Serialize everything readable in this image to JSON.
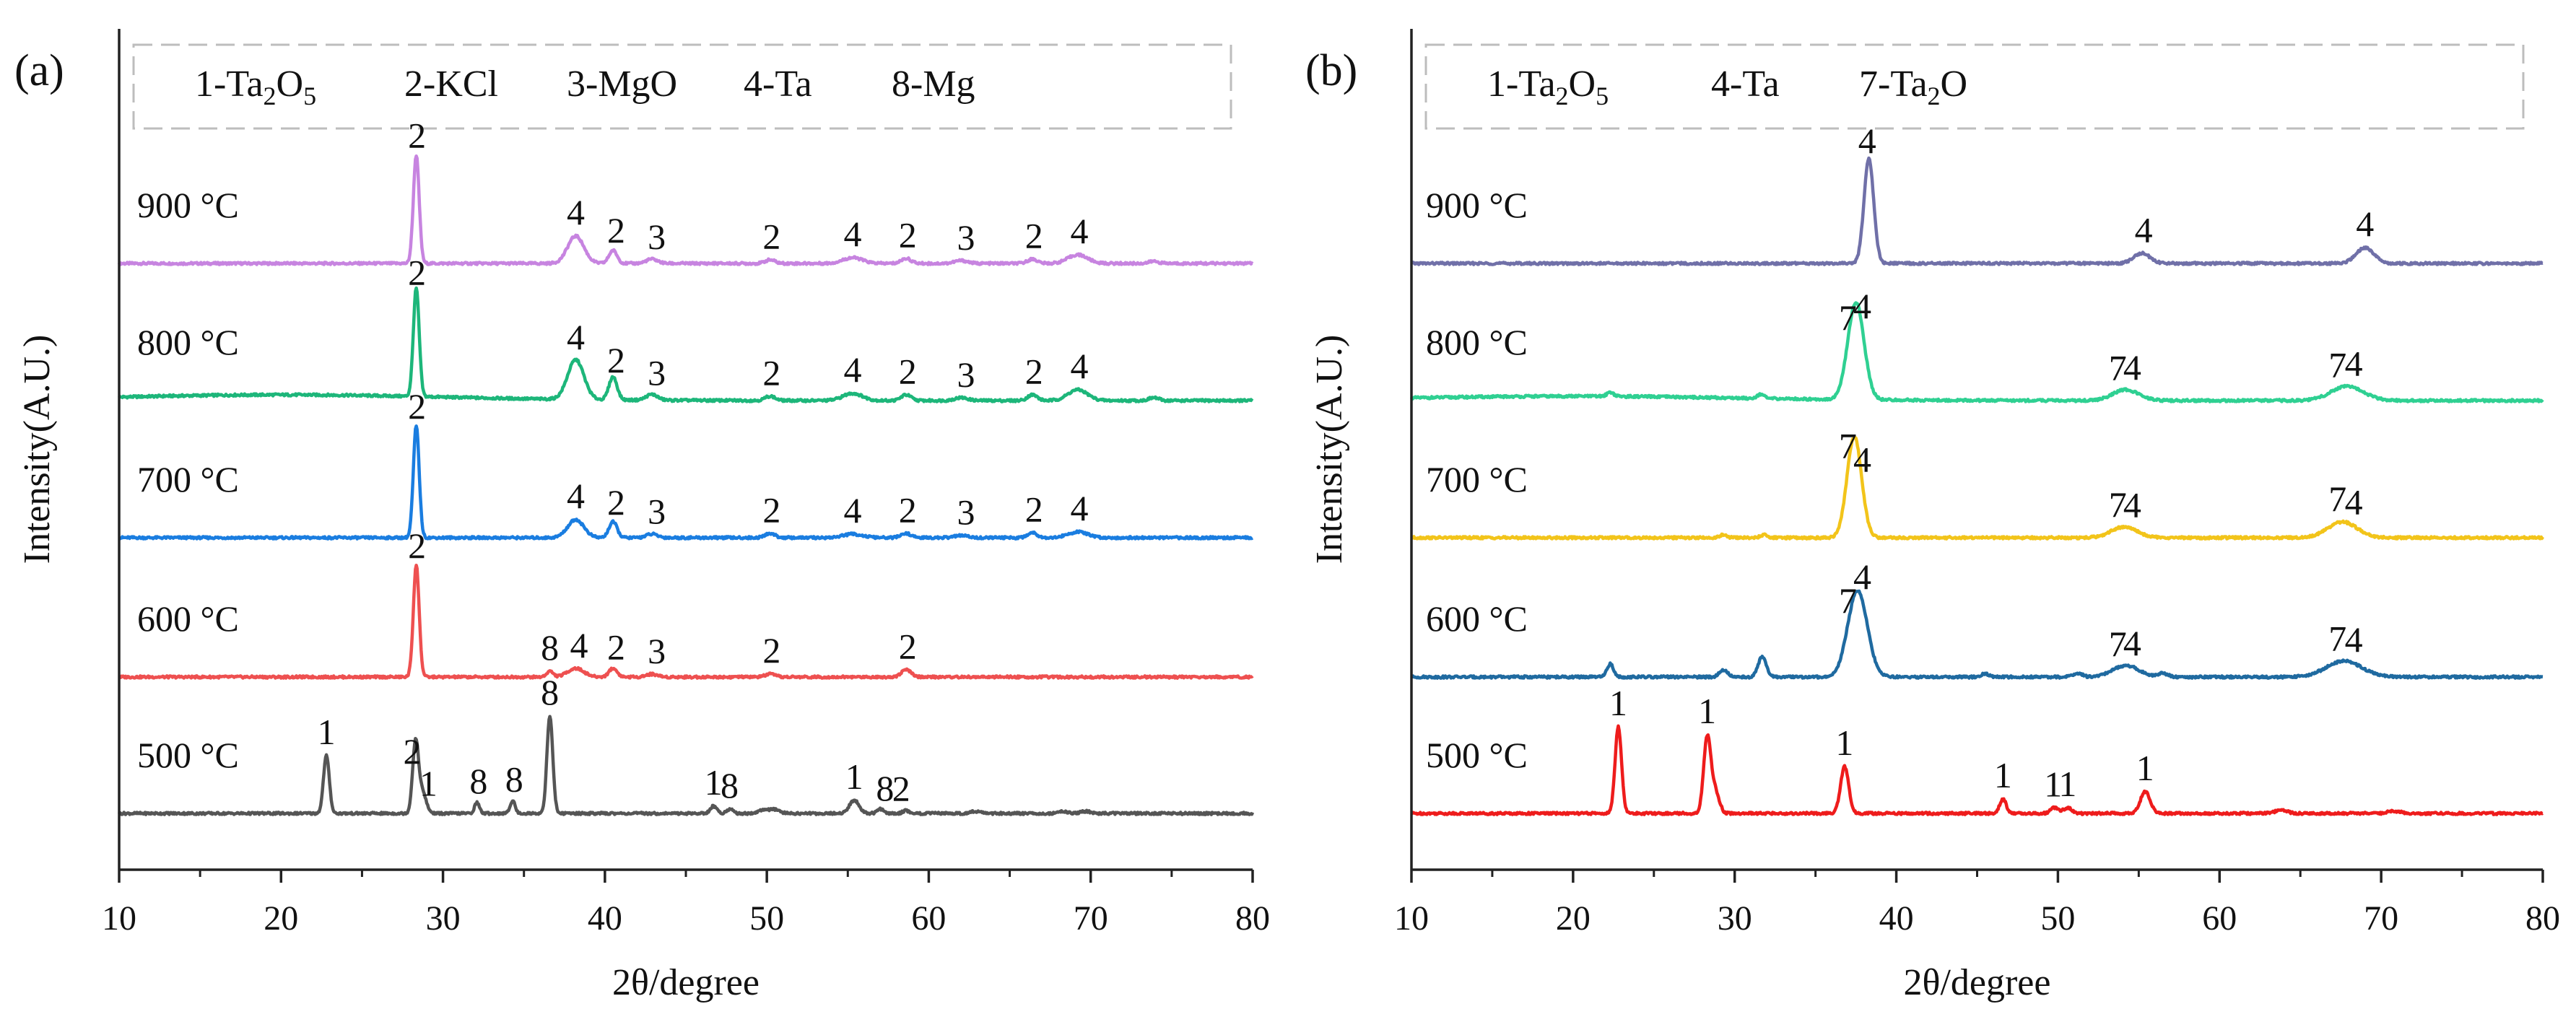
{
  "chart_data": [
    {
      "panel_label": "(a)",
      "type": "line",
      "xlabel": "2θ/degree",
      "ylabel": "Intensity(A.U.)",
      "xlim": [
        10,
        80
      ],
      "xticks": [
        10,
        20,
        30,
        40,
        50,
        60,
        70,
        80
      ],
      "legend": [
        {
          "num": "1",
          "base": "Ta",
          "sub1": "2",
          "mid": "O",
          "sub2": "5"
        },
        {
          "num": "2",
          "base": "KCl",
          "sub1": "",
          "mid": "",
          "sub2": ""
        },
        {
          "num": "3",
          "base": "MgO",
          "sub1": "",
          "mid": "",
          "sub2": ""
        },
        {
          "num": "4",
          "base": "Ta",
          "sub1": "",
          "mid": "",
          "sub2": ""
        },
        {
          "num": "8",
          "base": "Mg",
          "sub1": "",
          "mid": "",
          "sub2": ""
        }
      ],
      "series": [
        {
          "name": "900 °C",
          "color": "#c784e0",
          "peaks": [
            [
              28.35,
              150,
              0.18
            ],
            [
              38.2,
              38,
              0.5
            ],
            [
              40.5,
              18,
              0.25
            ],
            [
              42.9,
              6,
              0.35
            ],
            [
              50.2,
              5,
              0.3
            ],
            [
              55.3,
              8,
              0.6
            ],
            [
              58.6,
              7,
              0.3
            ],
            [
              62.0,
              4,
              0.4
            ],
            [
              66.4,
              6,
              0.3
            ],
            [
              69.2,
              12,
              0.6
            ],
            [
              73.9,
              3,
              0.3
            ]
          ],
          "annotations": [
            {
              "x": 28.4,
              "label": "2"
            },
            {
              "x": 38.2,
              "label": "4"
            },
            {
              "x": 40.7,
              "label": "2"
            },
            {
              "x": 43.2,
              "label": "3"
            },
            {
              "x": 50.3,
              "label": "2"
            },
            {
              "x": 55.3,
              "label": "4"
            },
            {
              "x": 58.7,
              "label": "2"
            },
            {
              "x": 62.3,
              "label": "3"
            },
            {
              "x": 66.5,
              "label": "2"
            },
            {
              "x": 69.3,
              "label": "4"
            }
          ]
        },
        {
          "name": "800 °C",
          "color": "#1db67a",
          "hump": [
            20,
            8,
            10
          ],
          "peaks": [
            [
              28.35,
              150,
              0.18
            ],
            [
              38.2,
              55,
              0.5
            ],
            [
              40.5,
              32,
              0.25
            ],
            [
              42.9,
              8,
              0.35
            ],
            [
              50.2,
              6,
              0.3
            ],
            [
              55.3,
              10,
              0.6
            ],
            [
              58.6,
              8,
              0.3
            ],
            [
              62.0,
              4,
              0.4
            ],
            [
              66.4,
              8,
              0.3
            ],
            [
              69.2,
              15,
              0.6
            ],
            [
              73.9,
              4,
              0.3
            ]
          ],
          "annotations": [
            {
              "x": 28.4,
              "label": "2"
            },
            {
              "x": 38.2,
              "label": "4"
            },
            {
              "x": 40.7,
              "label": "2"
            },
            {
              "x": 43.2,
              "label": "3"
            },
            {
              "x": 50.3,
              "label": "2"
            },
            {
              "x": 55.3,
              "label": "4"
            },
            {
              "x": 58.7,
              "label": "2"
            },
            {
              "x": 62.3,
              "label": "3"
            },
            {
              "x": 66.5,
              "label": "2"
            },
            {
              "x": 69.3,
              "label": "4"
            }
          ]
        },
        {
          "name": "700 °C",
          "color": "#1a7de0",
          "peaks": [
            [
              28.35,
              155,
              0.18
            ],
            [
              38.2,
              25,
              0.5
            ],
            [
              40.5,
              22,
              0.25
            ],
            [
              42.9,
              5,
              0.35
            ],
            [
              50.2,
              6,
              0.3
            ],
            [
              55.3,
              5,
              0.6
            ],
            [
              58.6,
              6,
              0.3
            ],
            [
              62.0,
              3,
              0.4
            ],
            [
              66.4,
              7,
              0.3
            ],
            [
              69.2,
              8,
              0.6
            ]
          ],
          "annotations": [
            {
              "x": 28.4,
              "label": "2"
            },
            {
              "x": 38.2,
              "label": "4"
            },
            {
              "x": 40.7,
              "label": "2"
            },
            {
              "x": 43.2,
              "label": "3"
            },
            {
              "x": 50.3,
              "label": "2"
            },
            {
              "x": 55.3,
              "label": "4"
            },
            {
              "x": 58.7,
              "label": "2"
            },
            {
              "x": 62.3,
              "label": "3"
            },
            {
              "x": 66.5,
              "label": "2"
            },
            {
              "x": 69.3,
              "label": "4"
            }
          ]
        },
        {
          "name": "600 °C",
          "color": "#ee5050",
          "peaks": [
            [
              28.35,
              155,
              0.18
            ],
            [
              36.6,
              8,
              0.2
            ],
            [
              38.2,
              12,
              0.5
            ],
            [
              40.5,
              12,
              0.25
            ],
            [
              42.9,
              4,
              0.35
            ],
            [
              50.2,
              4,
              0.3
            ],
            [
              58.6,
              10,
              0.3
            ]
          ],
          "annotations": [
            {
              "x": 28.4,
              "label": "2"
            },
            {
              "x": 36.6,
              "label": "8"
            },
            {
              "x": 38.4,
              "label": "4"
            },
            {
              "x": 40.7,
              "label": "2"
            },
            {
              "x": 43.2,
              "label": "3"
            },
            {
              "x": 50.3,
              "label": "2"
            },
            {
              "x": 58.7,
              "label": "2"
            }
          ]
        },
        {
          "name": "500 °C",
          "color": "#555555",
          "peaks": [
            [
              22.8,
              80,
              0.18
            ],
            [
              28.3,
              95,
              0.18
            ],
            [
              28.7,
              30,
              0.25
            ],
            [
              32.1,
              15,
              0.15
            ],
            [
              34.3,
              18,
              0.15
            ],
            [
              36.6,
              135,
              0.18
            ],
            [
              46.7,
              10,
              0.2
            ],
            [
              47.7,
              6,
              0.2
            ],
            [
              49.8,
              5,
              0.3
            ],
            [
              50.5,
              5,
              0.3
            ],
            [
              55.4,
              18,
              0.3
            ],
            [
              57.0,
              6,
              0.2
            ],
            [
              58.6,
              4,
              0.2
            ],
            [
              62.9,
              3,
              0.3
            ],
            [
              68.3,
              3,
              0.3
            ],
            [
              69.7,
              3,
              0.3
            ]
          ],
          "annotations": [
            {
              "x": 22.8,
              "label": "1"
            },
            {
              "x": 28.1,
              "label": "2"
            },
            {
              "x": 29.1,
              "label": "1"
            },
            {
              "x": 32.2,
              "label": "8"
            },
            {
              "x": 34.4,
              "label": "8"
            },
            {
              "x": 36.6,
              "label": "8"
            },
            {
              "x": 46.7,
              "label": "1"
            },
            {
              "x": 47.7,
              "label": "8"
            },
            {
              "x": 55.4,
              "label": "1"
            },
            {
              "x": 57.3,
              "label": "8"
            },
            {
              "x": 58.3,
              "label": "2"
            }
          ]
        }
      ]
    },
    {
      "panel_label": "(b)",
      "type": "line",
      "xlabel": "2θ/degree",
      "ylabel": "Intensity(A.U.)",
      "xlim": [
        10,
        80
      ],
      "xticks": [
        10,
        20,
        30,
        40,
        50,
        60,
        70,
        80
      ],
      "legend": [
        {
          "num": "1",
          "base": "Ta",
          "sub1": "2",
          "mid": "O",
          "sub2": "5"
        },
        {
          "num": "4",
          "base": "Ta",
          "sub1": "",
          "mid": "",
          "sub2": ""
        },
        {
          "num": "7",
          "base": "Ta",
          "sub1": "2",
          "mid": "O",
          "sub2": ""
        }
      ],
      "series": [
        {
          "name": "900 °C",
          "color": "#7070a8",
          "peaks": [
            [
              38.3,
              145,
              0.3
            ],
            [
              55.2,
              14,
              0.5
            ],
            [
              69.0,
              22,
              0.55
            ]
          ],
          "annotations": [
            {
              "x": 38.2,
              "label": "4"
            },
            {
              "x": 55.3,
              "label": "4"
            },
            {
              "x": 69.0,
              "label": "4"
            }
          ]
        },
        {
          "name": "800 °C",
          "color": "#2fd092",
          "hump": [
            20,
            6,
            10
          ],
          "peaks": [
            [
              37.5,
              135,
              0.5
            ],
            [
              54.2,
              15,
              0.8
            ],
            [
              67.9,
              20,
              1.0
            ],
            [
              22.3,
              6,
              0.2
            ],
            [
              31.6,
              6,
              0.2
            ]
          ],
          "annotations": [
            {
              "x": 37.0,
              "label": "7"
            },
            {
              "x": 37.9,
              "label": "4"
            },
            {
              "x": 53.7,
              "label": "7"
            },
            {
              "x": 54.6,
              "label": "4"
            },
            {
              "x": 67.3,
              "label": "7"
            },
            {
              "x": 68.3,
              "label": "4"
            }
          ]
        },
        {
          "name": "700 °C",
          "color": "#f2c41a",
          "peaks": [
            [
              37.4,
              140,
              0.45
            ],
            [
              54.1,
              15,
              0.8
            ],
            [
              67.6,
              22,
              0.9
            ],
            [
              29.3,
              4,
              0.2
            ],
            [
              31.8,
              4,
              0.2
            ]
          ],
          "annotations": [
            {
              "x": 37.0,
              "label": "7"
            },
            {
              "x": 37.9,
              "label": "4"
            },
            {
              "x": 53.7,
              "label": "7"
            },
            {
              "x": 54.6,
              "label": "4"
            },
            {
              "x": 67.3,
              "label": "7"
            },
            {
              "x": 68.3,
              "label": "4"
            }
          ]
        },
        {
          "name": "600 °C",
          "color": "#1f6aa0",
          "peaks": [
            [
              37.6,
              120,
              0.6
            ],
            [
              22.3,
              18,
              0.2
            ],
            [
              29.3,
              10,
              0.25
            ],
            [
              31.7,
              28,
              0.25
            ],
            [
              45.5,
              5,
              0.2
            ],
            [
              51.2,
              5,
              0.3
            ],
            [
              54.2,
              16,
              0.8
            ],
            [
              56.5,
              5,
              0.3
            ],
            [
              67.7,
              22,
              1.1
            ]
          ],
          "annotations": [
            {
              "x": 37.0,
              "label": "7"
            },
            {
              "x": 37.9,
              "label": "4"
            },
            {
              "x": 53.7,
              "label": "7"
            },
            {
              "x": 54.6,
              "label": "4"
            },
            {
              "x": 67.3,
              "label": "7"
            },
            {
              "x": 68.3,
              "label": "4"
            }
          ]
        },
        {
          "name": "500 °C",
          "color": "#ee1c1c",
          "peaks": [
            [
              22.8,
              120,
              0.2
            ],
            [
              28.3,
              105,
              0.22
            ],
            [
              28.8,
              30,
              0.25
            ],
            [
              36.8,
              65,
              0.25
            ],
            [
              46.6,
              20,
              0.2
            ],
            [
              49.8,
              8,
              0.25
            ],
            [
              50.6,
              8,
              0.25
            ],
            [
              55.4,
              30,
              0.3
            ],
            [
              63.8,
              4,
              0.4
            ],
            [
              70.8,
              3,
              0.4
            ]
          ],
          "annotations": [
            {
              "x": 22.8,
              "label": "1"
            },
            {
              "x": 28.3,
              "label": "1"
            },
            {
              "x": 36.8,
              "label": "1"
            },
            {
              "x": 46.6,
              "label": "1"
            },
            {
              "x": 49.7,
              "label": "1"
            },
            {
              "x": 50.6,
              "label": "1"
            },
            {
              "x": 55.4,
              "label": "1"
            }
          ]
        }
      ]
    }
  ]
}
